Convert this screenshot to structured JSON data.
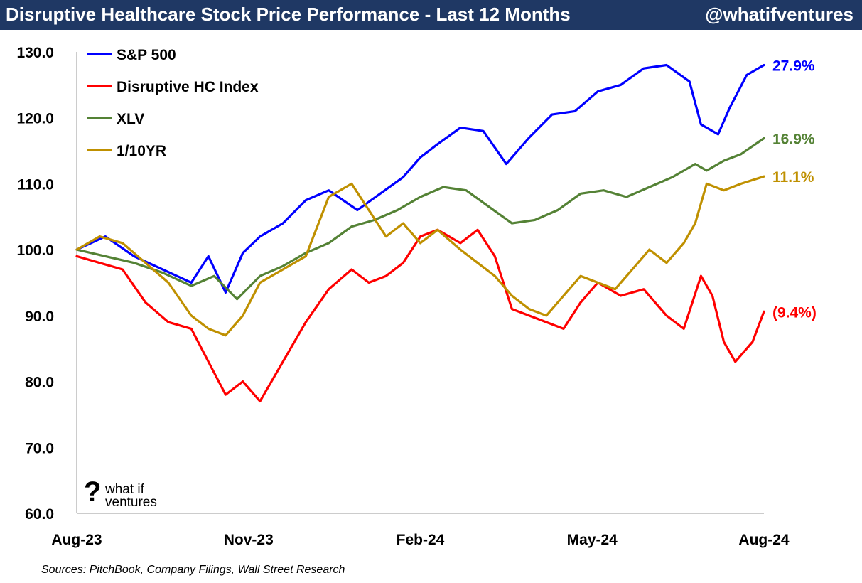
{
  "header": {
    "title": "Disruptive Healthcare Stock Price Performance - Last 12 Months",
    "handle": "@whatifventures"
  },
  "source_note": "Sources: PitchBook, Company Filings, Wall Street Research",
  "logo": {
    "glyph": "?",
    "line1": "what if",
    "line2": "ventures"
  },
  "chart_data": {
    "type": "line",
    "title": "Disruptive Healthcare Stock Price Performance - Last 12 Months",
    "xlabel": "",
    "ylabel": "",
    "ylim": [
      60,
      130
    ],
    "xlim": [
      0,
      12
    ],
    "yticks": [
      60,
      70,
      80,
      90,
      100,
      110,
      120,
      130
    ],
    "ytick_labels": [
      "60.0",
      "70.0",
      "80.0",
      "90.0",
      "100.0",
      "110.0",
      "120.0",
      "130.0"
    ],
    "xticks": [
      0,
      3,
      6,
      9,
      12
    ],
    "xtick_labels": [
      "Aug-23",
      "Nov-23",
      "Feb-24",
      "May-24",
      "Aug-24"
    ],
    "legend_position": "top-left",
    "series": [
      {
        "name": "S&P 500",
        "color": "#0000ff",
        "end_label": "27.9%",
        "x": [
          0,
          0.5,
          1.0,
          1.5,
          2.0,
          2.3,
          2.6,
          2.9,
          3.2,
          3.6,
          4.0,
          4.4,
          4.9,
          5.3,
          5.7,
          6.0,
          6.3,
          6.7,
          7.1,
          7.5,
          7.9,
          8.3,
          8.7,
          9.1,
          9.5,
          9.9,
          10.3,
          10.7,
          10.9,
          11.2,
          11.4,
          11.7,
          12.0
        ],
        "values": [
          100,
          102,
          99,
          97,
          95,
          99,
          93.5,
          99.5,
          102,
          104,
          107.5,
          109,
          106,
          108.5,
          111,
          114,
          116,
          118.5,
          118,
          113,
          117,
          120.5,
          121,
          124,
          125,
          127.5,
          128,
          125.5,
          119,
          117.5,
          121.5,
          126.5,
          128
        ]
      },
      {
        "name": "Disruptive HC Index",
        "color": "#ff0000",
        "end_label": "(9.4%)",
        "x": [
          0,
          0.4,
          0.8,
          1.2,
          1.6,
          2.0,
          2.3,
          2.6,
          2.9,
          3.2,
          3.6,
          4.0,
          4.4,
          4.8,
          5.1,
          5.4,
          5.7,
          6.0,
          6.3,
          6.7,
          7.0,
          7.3,
          7.6,
          7.9,
          8.2,
          8.5,
          8.8,
          9.1,
          9.5,
          9.9,
          10.3,
          10.6,
          10.9,
          11.1,
          11.3,
          11.5,
          11.8,
          12.0
        ],
        "values": [
          99,
          98,
          97,
          92,
          89,
          88,
          83,
          78,
          80,
          77,
          83,
          89,
          94,
          97,
          95,
          96,
          98,
          102,
          103,
          101,
          103,
          99,
          91,
          90,
          89,
          88,
          92,
          95,
          93,
          94,
          90,
          88,
          96,
          93,
          86,
          83,
          86,
          90.6
        ]
      },
      {
        "name": "XLV",
        "color": "#548235",
        "end_label": "16.9%",
        "x": [
          0,
          0.5,
          1.0,
          1.5,
          2.0,
          2.4,
          2.8,
          3.2,
          3.6,
          4.0,
          4.4,
          4.8,
          5.2,
          5.6,
          6.0,
          6.4,
          6.8,
          7.2,
          7.6,
          8.0,
          8.4,
          8.8,
          9.2,
          9.6,
          10.0,
          10.4,
          10.8,
          11.0,
          11.3,
          11.6,
          12.0
        ],
        "values": [
          100,
          99,
          98,
          96.5,
          94.5,
          96,
          92.5,
          96,
          97.5,
          99.5,
          101,
          103.5,
          104.5,
          106,
          108,
          109.5,
          109,
          106.5,
          104,
          104.5,
          106,
          108.5,
          109,
          108,
          109.5,
          111,
          113,
          112,
          113.5,
          114.5,
          116.9
        ]
      },
      {
        "name": "1/10YR",
        "color": "#bf9000",
        "end_label": "11.1%",
        "x": [
          0,
          0.4,
          0.8,
          1.2,
          1.6,
          2.0,
          2.3,
          2.6,
          2.9,
          3.2,
          3.6,
          4.0,
          4.4,
          4.8,
          5.1,
          5.4,
          5.7,
          6.0,
          6.3,
          6.7,
          7.0,
          7.3,
          7.6,
          7.9,
          8.2,
          8.5,
          8.8,
          9.1,
          9.4,
          9.7,
          10.0,
          10.3,
          10.6,
          10.8,
          11.0,
          11.3,
          11.6,
          12.0
        ],
        "values": [
          100,
          102,
          101,
          98,
          95,
          90,
          88,
          87,
          90,
          95,
          97,
          99,
          108,
          110,
          106,
          102,
          104,
          101,
          103,
          100,
          98,
          96,
          93,
          91,
          90,
          93,
          96,
          95,
          94,
          97,
          100,
          98,
          101,
          104,
          110,
          109,
          110,
          111.1
        ]
      }
    ]
  }
}
